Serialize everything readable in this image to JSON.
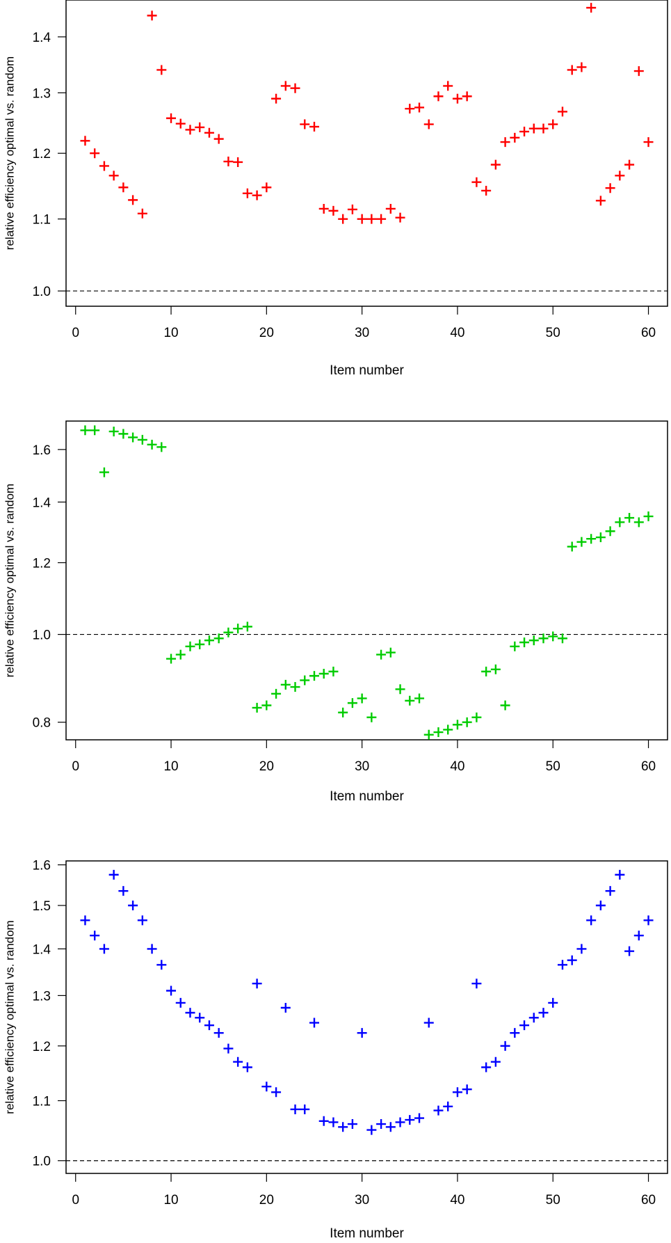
{
  "chart_data": [
    {
      "type": "scatter",
      "title": "",
      "xlabel": "Item number",
      "ylabel": "relative efficiency optimal vs. random",
      "xlim": [
        -1,
        62
      ],
      "ylim": [
        0.98,
        1.47
      ],
      "y_scale": "log",
      "x_ticks": [
        0,
        10,
        20,
        30,
        40,
        50,
        60
      ],
      "x_tick_labels": [
        "0",
        "10",
        "20",
        "30",
        "40",
        "50",
        "60"
      ],
      "y_ticks": [
        1.0,
        1.1,
        1.2,
        1.3,
        1.4
      ],
      "y_tick_labels": [
        "1.0",
        "1.1",
        "1.2",
        "1.3",
        "1.4"
      ],
      "reference_line": 1.0,
      "marker": "plus",
      "color": "#ff0000",
      "grid": false,
      "series": [
        {
          "x": [
            1,
            2,
            3,
            4,
            5,
            6,
            7,
            8,
            9,
            10,
            11,
            12,
            13,
            14,
            15,
            16,
            17,
            18,
            19,
            20,
            21,
            22,
            23,
            24,
            25,
            26,
            27,
            28,
            29,
            30,
            31,
            32,
            33,
            34,
            35,
            36,
            37,
            38,
            39,
            40,
            41,
            42,
            43,
            44,
            45,
            46,
            47,
            48,
            49,
            50,
            51,
            52,
            53,
            54,
            55,
            56,
            57,
            58,
            59,
            60
          ],
          "y": [
            1.22,
            1.2,
            1.18,
            1.165,
            1.147,
            1.128,
            1.108,
            1.44,
            1.34,
            1.257,
            1.248,
            1.238,
            1.242,
            1.233,
            1.223,
            1.187,
            1.186,
            1.138,
            1.135,
            1.147,
            1.29,
            1.312,
            1.308,
            1.247,
            1.243,
            1.115,
            1.112,
            1.1,
            1.114,
            1.1,
            1.1,
            1.1,
            1.115,
            1.102,
            1.273,
            1.275,
            1.247,
            1.294,
            1.312,
            1.29,
            1.294,
            1.155,
            1.142,
            1.182,
            1.218,
            1.225,
            1.235,
            1.24,
            1.24,
            1.247,
            1.268,
            1.34,
            1.345,
            1.455,
            1.127,
            1.146,
            1.165,
            1.182,
            1.338,
            1.218
          ]
        }
      ]
    },
    {
      "type": "scatter",
      "title": "",
      "xlabel": "Item number",
      "ylabel": "relative efficiency optimal vs. random",
      "xlim": [
        -1,
        62
      ],
      "ylim": [
        0.765,
        1.72
      ],
      "y_scale": "log",
      "x_ticks": [
        0,
        10,
        20,
        30,
        40,
        50,
        60
      ],
      "x_tick_labels": [
        "0",
        "10",
        "20",
        "30",
        "40",
        "50",
        "60"
      ],
      "y_ticks": [
        0.8,
        1.0,
        1.2,
        1.4,
        1.6
      ],
      "y_tick_labels": [
        "0.8",
        "1.0",
        "1.2",
        "1.4",
        "1.6"
      ],
      "reference_line": 1.0,
      "marker": "plus",
      "color": "#00cc00",
      "grid": false,
      "series": [
        {
          "x": [
            1,
            2,
            3,
            4,
            5,
            6,
            7,
            8,
            9,
            10,
            11,
            12,
            13,
            14,
            15,
            16,
            17,
            18,
            19,
            20,
            21,
            22,
            23,
            24,
            25,
            26,
            27,
            28,
            29,
            30,
            31,
            32,
            33,
            34,
            35,
            36,
            37,
            38,
            39,
            40,
            41,
            42,
            43,
            44,
            45,
            46,
            47,
            48,
            49,
            50,
            51,
            52,
            53,
            54,
            55,
            56,
            57,
            58,
            59,
            60
          ],
          "y": [
            1.68,
            1.68,
            1.51,
            1.675,
            1.665,
            1.65,
            1.64,
            1.62,
            1.61,
            0.94,
            0.95,
            0.97,
            0.975,
            0.985,
            0.99,
            1.005,
            1.015,
            1.02,
            0.83,
            0.835,
            0.86,
            0.88,
            0.875,
            0.89,
            0.9,
            0.905,
            0.91,
            0.82,
            0.84,
            0.85,
            0.81,
            0.95,
            0.955,
            0.87,
            0.845,
            0.85,
            0.775,
            0.78,
            0.785,
            0.795,
            0.8,
            0.81,
            0.91,
            0.915,
            0.835,
            0.97,
            0.98,
            0.985,
            0.99,
            0.995,
            0.99,
            1.25,
            1.265,
            1.275,
            1.28,
            1.3,
            1.33,
            1.345,
            1.33,
            1.35
          ]
        }
      ]
    },
    {
      "type": "scatter",
      "title": "",
      "xlabel": "Item number",
      "ylabel": "relative efficiency optimal vs. random",
      "xlim": [
        -1,
        62
      ],
      "ylim": [
        0.98,
        1.61
      ],
      "y_scale": "log",
      "x_ticks": [
        0,
        10,
        20,
        30,
        40,
        50,
        60
      ],
      "x_tick_labels": [
        "0",
        "10",
        "20",
        "30",
        "40",
        "50",
        "60"
      ],
      "y_ticks": [
        1.0,
        1.1,
        1.2,
        1.3,
        1.4,
        1.5,
        1.6
      ],
      "y_tick_labels": [
        "1.0",
        "1.1",
        "1.2",
        "1.3",
        "1.4",
        "1.5",
        "1.6"
      ],
      "reference_line": 1.0,
      "marker": "plus",
      "color": "#0000ff",
      "grid": false,
      "series": [
        {
          "x": [
            1,
            2,
            3,
            4,
            5,
            6,
            7,
            8,
            9,
            10,
            11,
            12,
            13,
            14,
            15,
            16,
            17,
            18,
            19,
            20,
            21,
            22,
            23,
            24,
            25,
            26,
            27,
            28,
            29,
            30,
            31,
            32,
            33,
            34,
            35,
            36,
            37,
            38,
            39,
            40,
            41,
            42,
            43,
            44,
            45,
            46,
            47,
            48,
            49,
            50,
            51,
            52,
            53,
            54,
            55,
            56,
            57,
            58,
            59,
            60
          ],
          "y": [
            1.465,
            1.43,
            1.4,
            1.575,
            1.535,
            1.5,
            1.465,
            1.4,
            1.365,
            1.31,
            1.285,
            1.265,
            1.255,
            1.24,
            1.225,
            1.195,
            1.17,
            1.16,
            1.325,
            1.125,
            1.115,
            1.275,
            1.085,
            1.085,
            1.245,
            1.065,
            1.063,
            1.055,
            1.06,
            1.225,
            1.05,
            1.06,
            1.055,
            1.063,
            1.067,
            1.07,
            1.245,
            1.083,
            1.09,
            1.115,
            1.12,
            1.325,
            1.16,
            1.17,
            1.2,
            1.225,
            1.24,
            1.255,
            1.265,
            1.285,
            1.365,
            1.375,
            1.4,
            1.465,
            1.5,
            1.535,
            1.575,
            1.395,
            1.43,
            1.465
          ]
        }
      ]
    }
  ]
}
